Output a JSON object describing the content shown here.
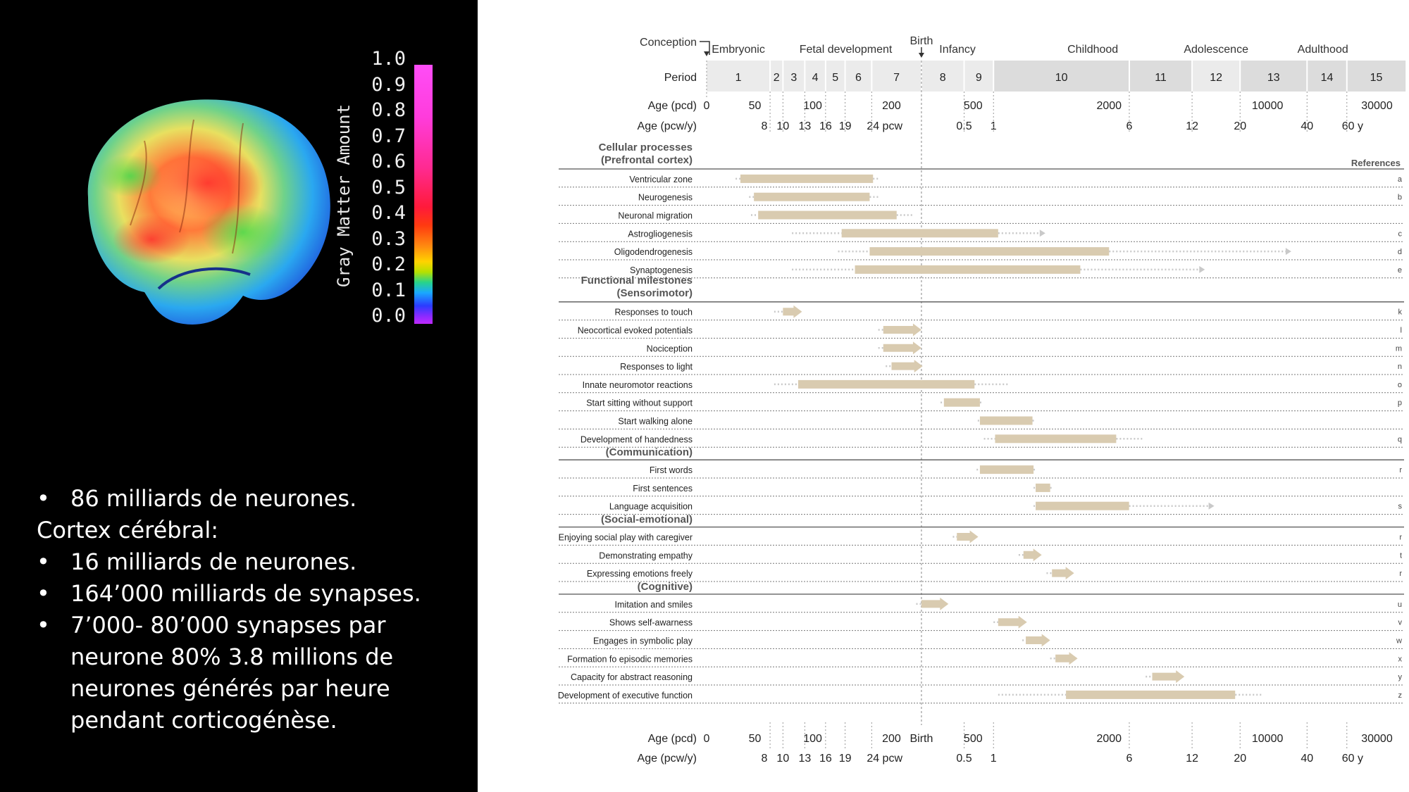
{
  "left_panel": {
    "scale_ticks": [
      "1.0",
      "0.9",
      "0.8",
      "0.7",
      "0.6",
      "0.5",
      "0.4",
      "0.3",
      "0.2",
      "0.1",
      "0.0"
    ],
    "scale_label": "Gray Matter Amount",
    "notes": [
      {
        "bullet": true,
        "text": "86 milliards de neurones."
      },
      {
        "bullet": false,
        "text": "Cortex cérébral:"
      },
      {
        "bullet": true,
        "text": "16 milliards de neurones."
      },
      {
        "bullet": true,
        "text": "164’000 milliards de synapses."
      },
      {
        "bullet": true,
        "text": "7’000- 80’000 synapses par neurone 80% 3.8 millions de neurones générés par heure pendant corticogénèse."
      }
    ]
  },
  "chart_data": {
    "type": "timeline",
    "phase_labels": {
      "conception": "Conception",
      "birth": "Birth"
    },
    "stages": [
      {
        "name": "Embryonic",
        "from_period": 1,
        "to_period": 1
      },
      {
        "name": "Fetal development",
        "from_period": 2,
        "to_period": 7
      },
      {
        "name": "Infancy",
        "from_period": 8,
        "to_period": 9
      },
      {
        "name": "Childhood",
        "from_period": 10,
        "to_period": 11
      },
      {
        "name": "Adolescence",
        "from_period": 12,
        "to_period": 12
      },
      {
        "name": "Adulthood",
        "from_period": 13,
        "to_period": 15
      }
    ],
    "period_label": "Period",
    "periods": [
      {
        "n": "1",
        "start": 0,
        "end": 60
      },
      {
        "n": "2",
        "start": 60,
        "end": 70
      },
      {
        "n": "3",
        "start": 70,
        "end": 91
      },
      {
        "n": "4",
        "start": 91,
        "end": 112
      },
      {
        "n": "5",
        "start": 112,
        "end": 133
      },
      {
        "n": "6",
        "start": 133,
        "end": 168
      },
      {
        "n": "7",
        "start": 168,
        "end": 266
      },
      {
        "n": "8",
        "start": 266,
        "end": 448
      },
      {
        "n": "9",
        "start": 448,
        "end": 630
      },
      {
        "n": "10",
        "start": 630,
        "end": 2456
      },
      {
        "n": "11",
        "start": 2456,
        "end": 4648
      },
      {
        "n": "12",
        "start": 4648,
        "end": 7570
      },
      {
        "n": "13",
        "start": 7570,
        "end": 14875
      },
      {
        "n": "14",
        "start": 14875,
        "end": 22180
      },
      {
        "n": "15",
        "start": 22180,
        "end": 40000
      }
    ],
    "axis": {
      "type": "piecewise-log",
      "unit": "days post conception",
      "anchors": [
        [
          0,
          0
        ],
        [
          50,
          0.071
        ],
        [
          100,
          0.156
        ],
        [
          200,
          0.272
        ],
        [
          266,
          0.316
        ],
        [
          500,
          0.392
        ],
        [
          630,
          0.422
        ],
        [
          2000,
          0.592
        ],
        [
          10000,
          0.825
        ],
        [
          30000,
          0.986
        ]
      ]
    },
    "age_pcd": {
      "label": "Age (pcd)",
      "ticks": [
        {
          "v": 0,
          "t": "0"
        },
        {
          "v": 50,
          "t": "50"
        },
        {
          "v": 100,
          "t": "100"
        },
        {
          "v": 200,
          "t": "200"
        },
        {
          "v": 500,
          "t": "500"
        },
        {
          "v": 2000,
          "t": "2000"
        },
        {
          "v": 10000,
          "t": "10000"
        },
        {
          "v": 30000,
          "t": "30000"
        }
      ],
      "birth_text": "Birth"
    },
    "age_pcwy": {
      "label": "Age (pcw/y)",
      "ticks": [
        {
          "v": 56,
          "t": "8"
        },
        {
          "v": 70,
          "t": "10"
        },
        {
          "v": 91,
          "t": "13"
        },
        {
          "v": 112,
          "t": "16"
        },
        {
          "v": 133,
          "t": "19"
        },
        {
          "v": 168,
          "t": "24 pcw"
        },
        {
          "v": 448,
          "t": "0.5"
        },
        {
          "v": 630,
          "t": "1"
        },
        {
          "v": 2456,
          "t": "6"
        },
        {
          "v": 4648,
          "t": "12"
        },
        {
          "v": 7570,
          "t": "20"
        },
        {
          "v": 14875,
          "t": "40"
        },
        {
          "v": 22180,
          "t": "60 y"
        }
      ]
    },
    "references_label": "References",
    "sections": [
      {
        "title": "Cellular processes",
        "subtitle": "(Prefrontal cortex)",
        "rows": [
          {
            "label": "Ventricular zone",
            "pre": 30,
            "start": 35,
            "end": 170,
            "post": 180,
            "arrow": false,
            "ref": "a"
          },
          {
            "label": "Neurogenesis",
            "pre": 44,
            "start": 49,
            "end": 165,
            "post": 180,
            "arrow": false,
            "ref": "b"
          },
          {
            "label": "Neuronal migration",
            "pre": 46,
            "start": 52,
            "end": 210,
            "post": 245,
            "arrow": false,
            "ref": ""
          },
          {
            "label": "Astrogliogenesis",
            "pre": 78,
            "start": 129,
            "end": 660,
            "post": 1000,
            "arrow": true,
            "ref": "c"
          },
          {
            "label": "Oligodendrogenesis",
            "pre": 125,
            "start": 165,
            "end": 2000,
            "post": 12000,
            "arrow": true,
            "ref": "d"
          },
          {
            "label": "Synaptogenesis",
            "pre": 78,
            "start": 145,
            "end": 1500,
            "post": 5000,
            "arrow": true,
            "ref": "e"
          }
        ]
      },
      {
        "title": "Functional milestones",
        "subtitle": "(Sensorimotor)",
        "rows": [
          {
            "label": "Responses to touch",
            "pre": 63,
            "start": 70,
            "end": 88,
            "post": 88,
            "arrow": true,
            "ref": "k"
          },
          {
            "label": "Neocortical evoked potentials",
            "pre": 178,
            "start": 186,
            "end": 266,
            "post": 266,
            "arrow": true,
            "ref": "l"
          },
          {
            "label": "Nociception",
            "pre": 178,
            "start": 186,
            "end": 266,
            "post": 266,
            "arrow": true,
            "ref": "m"
          },
          {
            "label": "Responses to light",
            "pre": 190,
            "start": 200,
            "end": 270,
            "post": 270,
            "arrow": true,
            "ref": "n"
          },
          {
            "label": "Innate neuromotor reactions",
            "pre": 63,
            "start": 84,
            "end": 508,
            "post": 740,
            "arrow": false,
            "ref": "o"
          },
          {
            "label": "Start sitting without support",
            "pre": 336,
            "start": 350,
            "end": 540,
            "post": 555,
            "arrow": false,
            "ref": "p"
          },
          {
            "label": "Start walking alone",
            "pre": 527,
            "start": 540,
            "end": 930,
            "post": 960,
            "arrow": false,
            "ref": ""
          },
          {
            "label": "Development of handedness",
            "pre": 565,
            "start": 640,
            "end": 2150,
            "post": 2800,
            "arrow": false,
            "ref": "q"
          }
        ]
      },
      {
        "title": "",
        "subtitle": "(Communication)",
        "rows": [
          {
            "label": "First words",
            "pre": 520,
            "start": 540,
            "end": 940,
            "post": 970,
            "arrow": false,
            "ref": "r"
          },
          {
            "label": "First sentences",
            "pre": 940,
            "start": 960,
            "end": 1110,
            "post": 1140,
            "arrow": false,
            "ref": ""
          },
          {
            "label": "Language acquisition",
            "pre": 940,
            "start": 960,
            "end": 2450,
            "post": 5500,
            "arrow": true,
            "ref": "s"
          }
        ]
      },
      {
        "title": "",
        "subtitle": "(Social-emotional)",
        "rows": [
          {
            "label": "Enjoying social play with caregiver",
            "pre": 390,
            "start": 410,
            "end": 530,
            "post": 530,
            "arrow": true,
            "ref": "r"
          },
          {
            "label": "Demonstrating empathy",
            "pre": 810,
            "start": 850,
            "end": 1020,
            "post": 1020,
            "arrow": true,
            "ref": "t"
          },
          {
            "label": "Expressing emotions freely",
            "pre": 1070,
            "start": 1130,
            "end": 1410,
            "post": 1410,
            "arrow": true,
            "ref": "r"
          }
        ]
      },
      {
        "title": "",
        "subtitle": "(Cognitive)",
        "rows": [
          {
            "label": "Imitation and smiles",
            "pre": 253,
            "start": 266,
            "end": 370,
            "post": 370,
            "arrow": true,
            "ref": "u"
          },
          {
            "label": "Shows self-awarness",
            "pre": 630,
            "start": 660,
            "end": 880,
            "post": 880,
            "arrow": true,
            "ref": "v"
          },
          {
            "label": "Engages in symbolic play",
            "pre": 840,
            "start": 870,
            "end": 1110,
            "post": 1110,
            "arrow": true,
            "ref": "w"
          },
          {
            "label": "Formation fo episodic memories",
            "pre": 1110,
            "start": 1170,
            "end": 1460,
            "post": 1460,
            "arrow": true,
            "ref": "x"
          },
          {
            "label": "Capacity for abstract reasoning",
            "pre": 2900,
            "start": 3100,
            "end": 4300,
            "post": 4300,
            "arrow": true,
            "ref": "y"
          },
          {
            "label": "Development of executive function",
            "pre": 660,
            "start": 1300,
            "end": 7200,
            "post": 9500,
            "arrow": false,
            "ref": "z"
          }
        ]
      }
    ],
    "colors": {
      "bar": "#d9cbb0",
      "dots": "#c9c9c9",
      "band": "#e4e4e4",
      "line": "#555555"
    }
  }
}
